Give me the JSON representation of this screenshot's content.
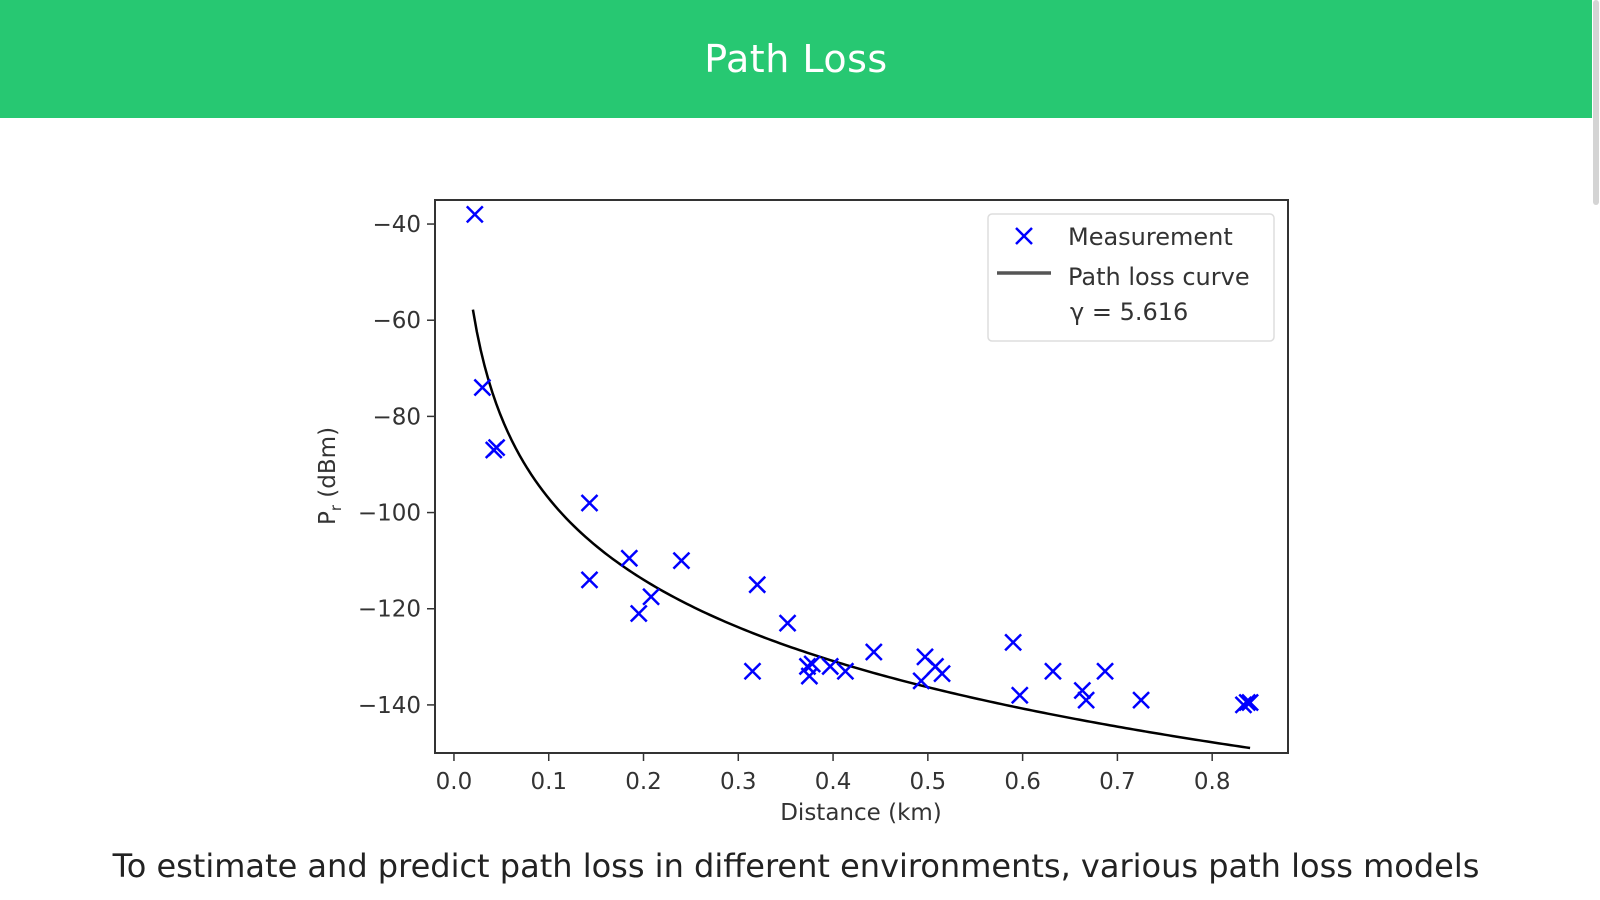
{
  "header": {
    "title": "Path Loss"
  },
  "colors": {
    "header_bg": "#27c872",
    "measurement": "#0000ff",
    "curve": "#000000",
    "legend_curve": "#555555"
  },
  "chart_data": {
    "type": "scatter",
    "xlabel": "Distance (km)",
    "ylabel_main": "P",
    "ylabel_sub": "r",
    "ylabel_unit": " (dBm)",
    "xlim": [
      -0.02,
      0.88
    ],
    "ylim": [
      -150,
      -35
    ],
    "xticks": [
      0.0,
      0.1,
      0.2,
      0.3,
      0.4,
      0.5,
      0.6,
      0.7,
      0.8
    ],
    "xtick_labels": [
      "0.0",
      "0.1",
      "0.2",
      "0.3",
      "0.4",
      "0.5",
      "0.6",
      "0.7",
      "0.8"
    ],
    "yticks": [
      -40,
      -60,
      -80,
      -100,
      -120,
      -140
    ],
    "ytick_labels": [
      "−40",
      "−60",
      "−80",
      "−100",
      "−120",
      "−140"
    ],
    "legend": {
      "location": "upper right",
      "entries": [
        {
          "label": "Measurement",
          "marker": "x"
        },
        {
          "label": "Path loss curve",
          "marker": "line"
        }
      ],
      "gamma_text": "γ = 5.616"
    },
    "series": [
      {
        "name": "Measurement",
        "marker": "x",
        "x": [
          0.022,
          0.03,
          0.042,
          0.045,
          0.143,
          0.143,
          0.185,
          0.195,
          0.208,
          0.24,
          0.315,
          0.32,
          0.352,
          0.373,
          0.375,
          0.378,
          0.397,
          0.413,
          0.443,
          0.493,
          0.497,
          0.508,
          0.515,
          0.59,
          0.597,
          0.632,
          0.663,
          0.667,
          0.687,
          0.725,
          0.833,
          0.837,
          0.84
        ],
        "y": [
          -38,
          -74,
          -87,
          -86.5,
          -98,
          -114,
          -109.5,
          -121,
          -117.5,
          -110,
          -133,
          -115,
          -123,
          -132,
          -134,
          -131.5,
          -132,
          -133,
          -129,
          -135,
          -130,
          -132,
          -133.5,
          -127,
          -138,
          -133,
          -137,
          -139,
          -133,
          -139,
          -140,
          -139.5,
          -139.5
        ]
      },
      {
        "name": "Path loss curve",
        "model": "log-distance",
        "gamma": 5.616,
        "d0": 0.02,
        "p0": -57.8,
        "x_range": [
          0.02,
          0.84
        ]
      }
    ]
  },
  "paragraph": {
    "text": "To estimate and predict path loss in different environments, various path loss models"
  }
}
